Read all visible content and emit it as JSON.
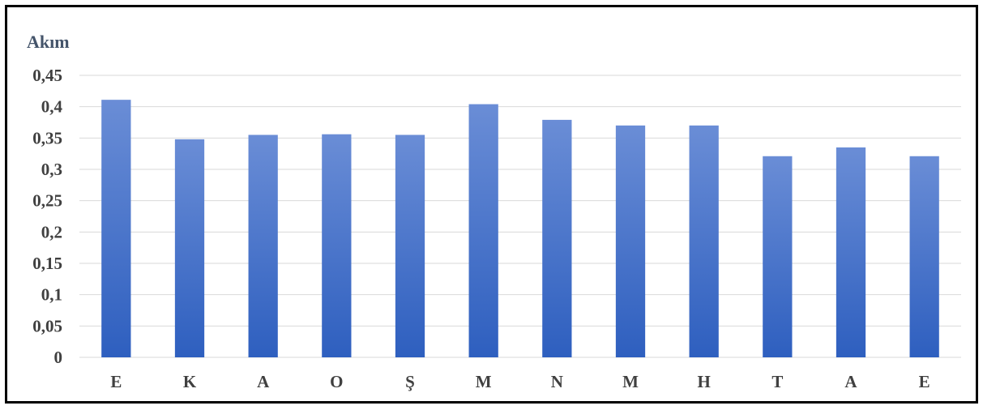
{
  "chart_data": {
    "type": "bar",
    "ylabel": "Akım",
    "xlabel": "",
    "categories": [
      "E",
      "K",
      "A",
      "O",
      "Ş",
      "M",
      "N",
      "M",
      "H",
      "T",
      "A",
      "E"
    ],
    "values": [
      0.411,
      0.348,
      0.355,
      0.356,
      0.355,
      0.404,
      0.379,
      0.37,
      0.37,
      0.321,
      0.335,
      0.321
    ],
    "ylim": [
      0,
      0.45
    ],
    "yticks": [
      0,
      0.05,
      0.1,
      0.15,
      0.2,
      0.25,
      0.3,
      0.35,
      0.4,
      0.45
    ],
    "ytick_labels": [
      "0",
      "0,05",
      "0,1",
      "0,15",
      "0,2",
      "0,25",
      "0,3",
      "0,35",
      "0,4",
      "0,45"
    ],
    "grid": true,
    "legend": "none",
    "colors": {
      "bar_top": "#6a8dd6",
      "bar_bottom": "#2e5fbf",
      "grid": "#d9d9d9",
      "border": "#000000",
      "title": "#44546a",
      "labels": "#404040"
    }
  }
}
